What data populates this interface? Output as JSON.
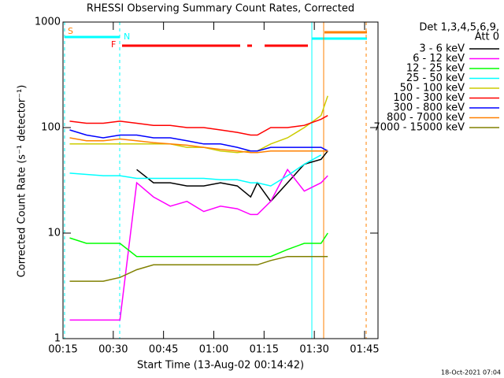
{
  "chart_data": {
    "type": "line",
    "title": "RHESSI Observing Summary Count Rates, Corrected",
    "x_label": "Start Time (13-Aug-02 00:14:42)",
    "y_label": "Corrected Count Rate (s⁻¹ detector⁻¹)",
    "legend_title": [
      "Det 1,3,4,5,6,9,",
      "Att 0"
    ],
    "footer": "18-Oct-2021 07:04",
    "annotations": [
      "S",
      "N",
      "F"
    ],
    "log_scale": true,
    "legend": "right",
    "xlim": [
      "00:15",
      "01:49"
    ],
    "xticks": [
      "00:15",
      "00:30",
      "00:45",
      "01:00",
      "01:15",
      "01:30",
      "01:45"
    ],
    "ylim": [
      1,
      1000
    ],
    "yticks": [
      1,
      10,
      100,
      1000
    ],
    "x": [
      "00:17",
      "00:22",
      "00:27",
      "00:32",
      "00:37",
      "00:42",
      "00:47",
      "00:52",
      "00:57",
      "01:02",
      "01:07",
      "01:11",
      "01:13",
      "01:17",
      "01:22",
      "01:27",
      "01:32",
      "01:34"
    ],
    "series": [
      {
        "name": "3 - 6 keV",
        "color": "#000000",
        "values": [
          null,
          null,
          null,
          null,
          40,
          30,
          30,
          28,
          28,
          30,
          28,
          22,
          30,
          20,
          30,
          45,
          50,
          60
        ]
      },
      {
        "name": "6 - 12 keV",
        "color": "#ff00ff",
        "values": [
          1.5,
          1.5,
          1.5,
          1.5,
          30,
          22,
          18,
          20,
          16,
          18,
          17,
          15,
          15,
          20,
          40,
          25,
          30,
          35
        ]
      },
      {
        "name": "12 - 25 keV",
        "color": "#00ff00",
        "values": [
          9,
          8,
          8,
          8,
          6,
          6,
          6,
          6,
          6,
          6,
          6,
          6,
          6,
          6,
          7,
          8,
          8,
          10
        ]
      },
      {
        "name": "25 - 50 keV",
        "color": "#00ffff",
        "values": [
          37,
          36,
          35,
          35,
          33,
          33,
          33,
          33,
          33,
          32,
          32,
          30,
          30,
          28,
          35,
          45,
          55,
          null
        ]
      },
      {
        "name": "50 - 100 keV",
        "color": "#cccc00",
        "values": [
          70,
          70,
          70,
          70,
          70,
          70,
          70,
          65,
          65,
          60,
          58,
          60,
          60,
          70,
          80,
          100,
          130,
          200
        ]
      },
      {
        "name": "100 - 300 keV",
        "color": "#ff0000",
        "values": [
          115,
          110,
          110,
          115,
          110,
          105,
          105,
          100,
          100,
          95,
          90,
          85,
          85,
          100,
          100,
          105,
          120,
          130
        ]
      },
      {
        "name": "300 - 800 keV",
        "color": "#0000ff",
        "values": [
          95,
          85,
          80,
          85,
          85,
          80,
          80,
          75,
          70,
          70,
          65,
          60,
          60,
          65,
          65,
          65,
          65,
          60
        ]
      },
      {
        "name": "800 - 7000 keV",
        "color": "#ff8000",
        "values": [
          80,
          75,
          75,
          78,
          75,
          72,
          70,
          68,
          65,
          62,
          60,
          58,
          58,
          60,
          60,
          60,
          60,
          60
        ]
      },
      {
        "name": "7000 - 15000 keV",
        "color": "#808000",
        "values": [
          3.5,
          3.5,
          3.5,
          3.8,
          4.5,
          5,
          5,
          5,
          5,
          5,
          5,
          5,
          5,
          5.5,
          6,
          6,
          6,
          6
        ]
      }
    ]
  }
}
